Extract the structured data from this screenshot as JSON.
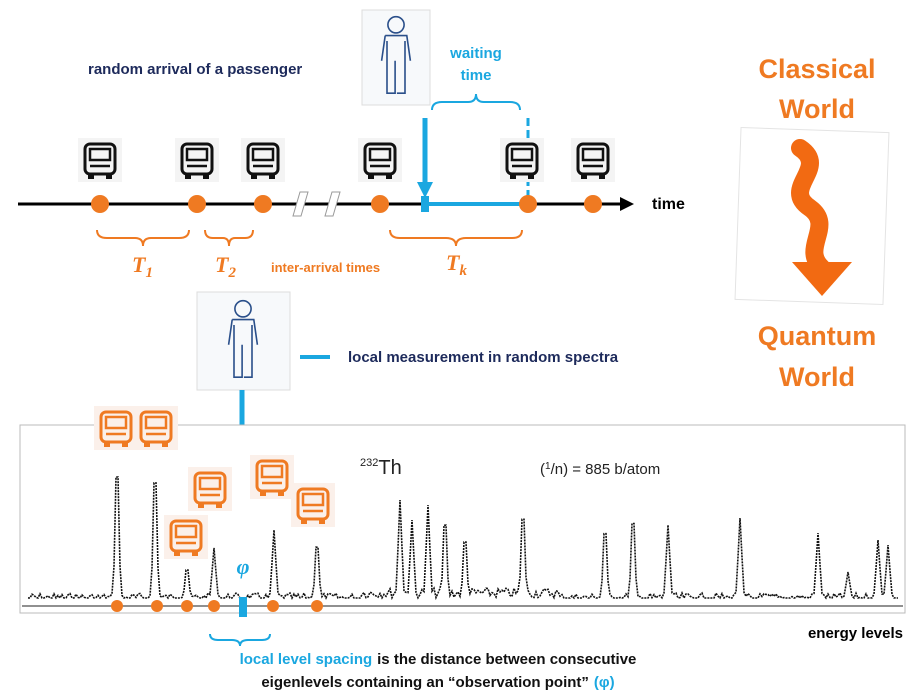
{
  "top": {
    "passenger_label": "random arrival of a passenger",
    "waiting_line1": "waiting",
    "waiting_line2": "time",
    "time_label": "time",
    "intervals": [
      {
        "symbol": "T",
        "sub": "1"
      },
      {
        "symbol": "T",
        "sub": "2"
      },
      {
        "symbol": "T",
        "sub": "k"
      }
    ],
    "inter_arrival_label": "inter-arrival times"
  },
  "side": {
    "classical_line1": "Classical",
    "classical_line2": "World",
    "quantum_line1": "Quantum",
    "quantum_line2": "World"
  },
  "middle": {
    "measurement_label": "local measurement in random spectra"
  },
  "spectrum": {
    "isotope_mass": "232",
    "isotope": "Th",
    "annotation_open": "(",
    "annotation_num": "1",
    "annotation_rest": "/n) = 885  b/atom",
    "phi": "φ",
    "axis_label": "energy levels"
  },
  "caption": {
    "term": "local level spacing",
    "line1": "is the distance between consecutive",
    "line2": "eigenlevels containing an “observation point”",
    "symbol": "(φ)"
  }
}
